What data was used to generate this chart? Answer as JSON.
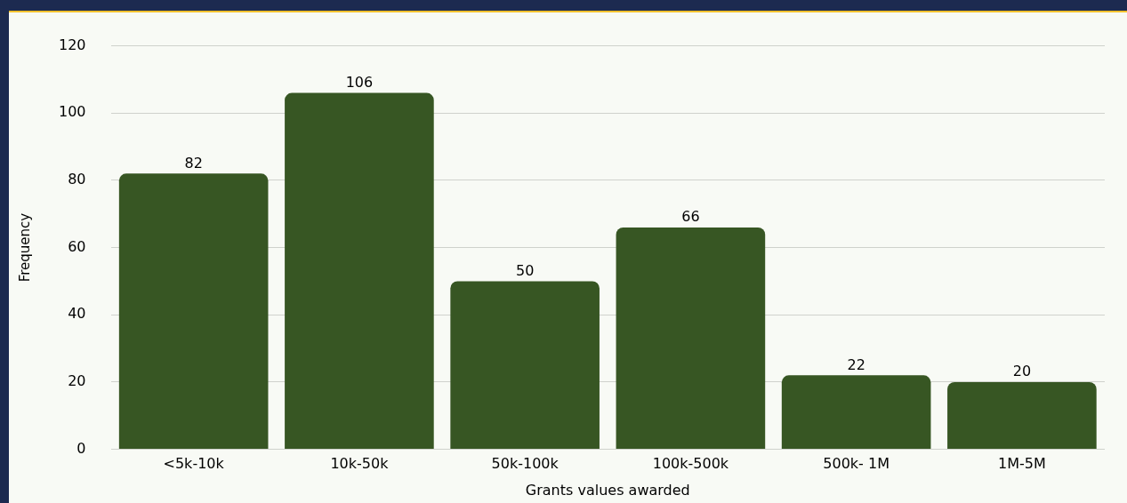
{
  "chart_data": {
    "type": "bar",
    "xlabel": "Grants values awarded",
    "ylabel": "Frequency",
    "categories": [
      "<5k-10k",
      "10k-50k",
      "50k-100k",
      "100k-500k",
      "500k- 1M",
      "1M-5M"
    ],
    "values": [
      82,
      106,
      50,
      66,
      22,
      20
    ],
    "color": "#375623",
    "ylim": [
      0,
      120
    ],
    "yticks": [
      0,
      20,
      40,
      60,
      80,
      100,
      120
    ],
    "grid": "y",
    "data_labels": true
  }
}
